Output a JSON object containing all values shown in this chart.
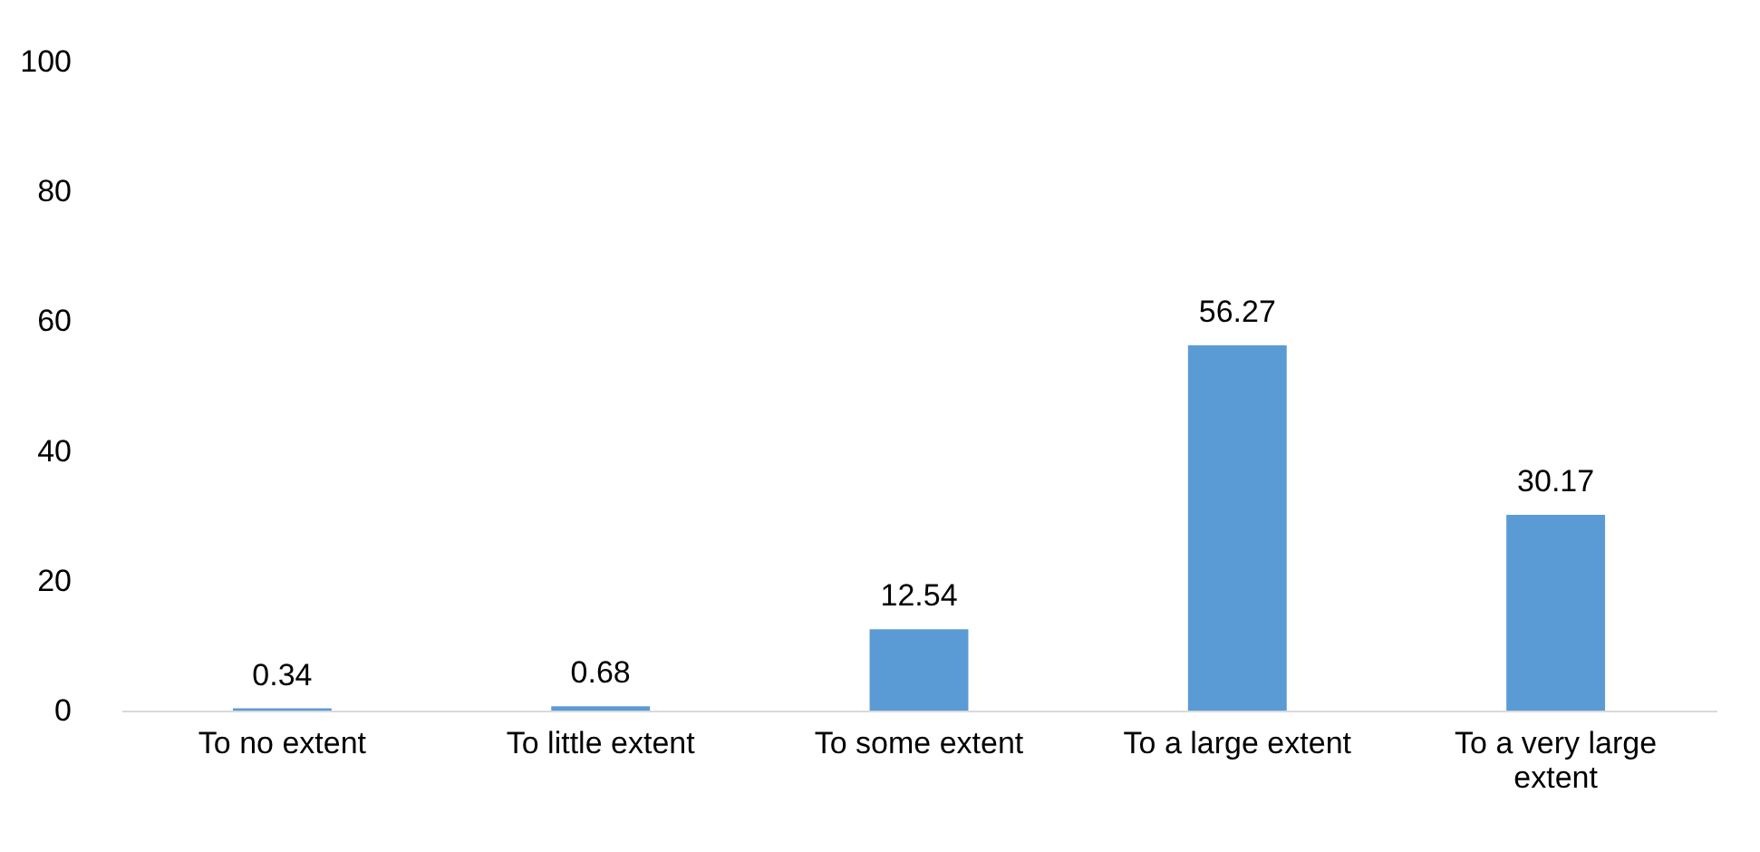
{
  "chart_data": {
    "type": "bar",
    "categories": [
      "To no extent",
      "To little extent",
      "To some extent",
      "To a large extent",
      "To a very large extent"
    ],
    "values": [
      0.34,
      0.68,
      12.54,
      56.27,
      30.17
    ],
    "color": "#5b9bd5",
    "ylim": [
      0,
      100
    ],
    "yticks": [
      0,
      20,
      40,
      60,
      80,
      100
    ],
    "grid": false,
    "data_labels": true
  }
}
